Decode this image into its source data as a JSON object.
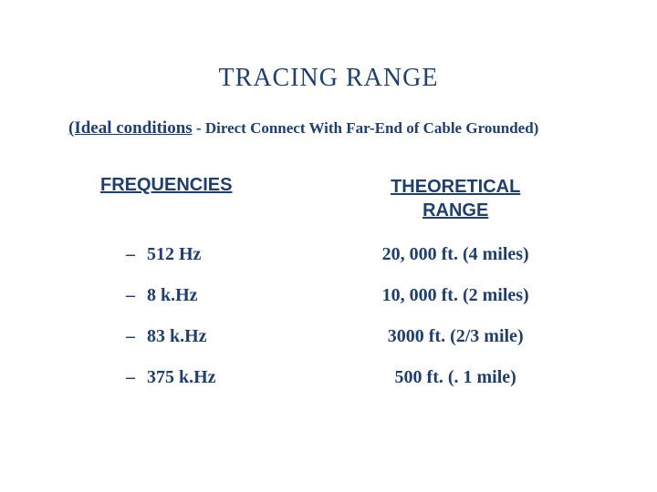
{
  "colors": {
    "title": "#1f3f6e",
    "text": "#1f3f6e",
    "background": "#ffffff"
  },
  "typography": {
    "title_fontsize": 28,
    "subtitle_fontsize": 19,
    "header_fontsize": 20,
    "row_fontsize": 20,
    "title_family": "Georgia",
    "body_family": "Times New Roman",
    "header_family": "Arial"
  },
  "title": "TRACING RANGE",
  "subtitle": {
    "lead": "(Ideal conditions",
    "rest": " - Direct Connect With Far-End of Cable Grounded)"
  },
  "headers": {
    "frequencies": "FREQUENCIES",
    "range_line1": "THEORETICAL",
    "range_line2": "RANGE"
  },
  "rows": [
    {
      "dash": "–",
      "freq": "  512 Hz",
      "range": "20, 000 ft. (4 miles)"
    },
    {
      "dash": "–",
      "freq": " 8 k.Hz",
      "range": "10, 000 ft. (2 miles)"
    },
    {
      "dash": "–",
      "freq": "  83 k.Hz",
      "range": "3000 ft. (2/3 mile)"
    },
    {
      "dash": "–",
      "freq": " 375 k.Hz",
      "range": "500 ft. (. 1 mile)"
    }
  ]
}
